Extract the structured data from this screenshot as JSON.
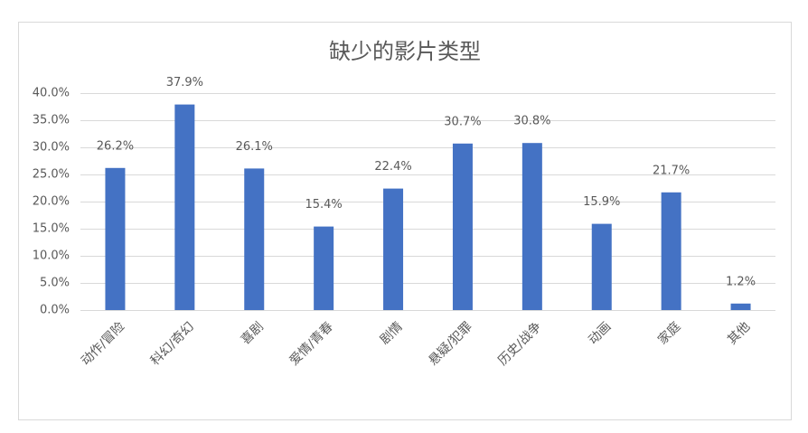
{
  "chart_data": {
    "type": "bar",
    "title": "缺少的影片类型",
    "categories": [
      "动作/冒险",
      "科幻/奇幻",
      "喜剧",
      "爱情/青春",
      "剧情",
      "悬疑/犯罪",
      "历史/战争",
      "动画",
      "家庭",
      "其他"
    ],
    "values": [
      26.2,
      37.9,
      26.1,
      15.4,
      22.4,
      30.7,
      30.8,
      15.9,
      21.7,
      1.2
    ],
    "value_labels": [
      "26.2%",
      "37.9%",
      "26.1%",
      "15.4%",
      "22.4%",
      "30.7%",
      "30.8%",
      "15.9%",
      "21.7%",
      "1.2%"
    ],
    "color": "#4472c4",
    "ylim": [
      0,
      40
    ],
    "yticks": [
      {
        "value": 0,
        "label": "0.0%"
      },
      {
        "value": 5,
        "label": "5.0%"
      },
      {
        "value": 10,
        "label": "10.0%"
      },
      {
        "value": 15,
        "label": "15.0%"
      },
      {
        "value": 20,
        "label": "20.0%"
      },
      {
        "value": 25,
        "label": "25.0%"
      },
      {
        "value": 30,
        "label": "30.0%"
      },
      {
        "value": 35,
        "label": "35.0%"
      },
      {
        "value": 40,
        "label": "40.0%"
      }
    ],
    "grid": true
  }
}
